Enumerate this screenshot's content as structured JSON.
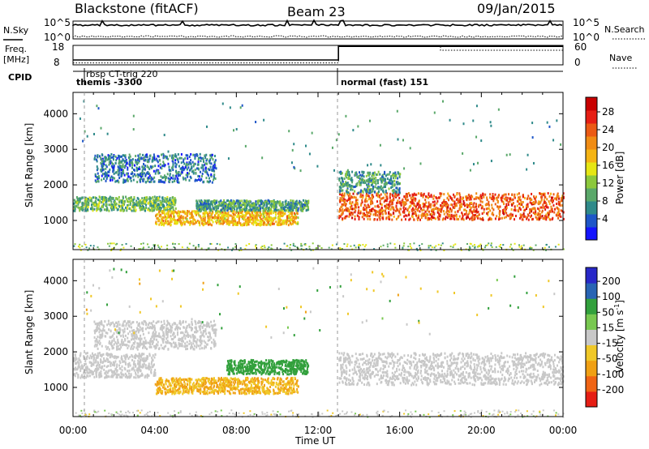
{
  "header": {
    "station": "Blackstone (fitACF)",
    "beam": "Beam 23",
    "date": "09/Jan/2015"
  },
  "left_labels": {
    "nsky": "N.Sky",
    "freq": "Freq.",
    "freq_unit": "[MHz]",
    "cpid": "CPID"
  },
  "right_labels": {
    "nsearch": "N.Search",
    "nave": "Nave"
  },
  "noise_ticks": {
    "left_top": "10^5",
    "left_bot": "10^0",
    "right_top": "10^5",
    "right_bot": "10^0"
  },
  "freq_ticks": {
    "left_top": "18",
    "left_bot": "8",
    "right_top": "60",
    "right_bot": "0"
  },
  "cpid_labels": [
    {
      "text": "rbsp CT-trig 220"
    },
    {
      "text": "themis -3300"
    },
    {
      "text": "normal (fast) 151"
    }
  ],
  "axis": {
    "ylabel": "Slant Range [km]",
    "xlabel": "Time UT",
    "y_ticks": [
      "1000",
      "2000",
      "3000",
      "4000"
    ],
    "x_ticks": [
      "00:00",
      "04:00",
      "08:00",
      "12:00",
      "16:00",
      "20:00",
      "00:00"
    ]
  },
  "power_colorbar": {
    "label": "Power [dB]",
    "ticks": [
      "4",
      "8",
      "12",
      "16",
      "20",
      "24",
      "28"
    ],
    "colors": [
      "#1414ff",
      "#1e56c8",
      "#2f8a8a",
      "#5aa86a",
      "#8cc83c",
      "#e6e614",
      "#f5b414",
      "#f08c14",
      "#eb5a14",
      "#e61e14",
      "#c80000"
    ]
  },
  "velocity_colorbar": {
    "label": "Velocity [m s",
    "label_sup": "-1",
    "label_end": "]",
    "ticks": [
      "200",
      "100",
      "50",
      "15",
      "-15",
      "-50",
      "-100",
      "-200"
    ],
    "colors": [
      "#2828c8",
      "#2864b4",
      "#32a03c",
      "#78c850",
      "#c8c8c8",
      "#f0c828",
      "#f0a014",
      "#f06414",
      "#e61e14"
    ]
  },
  "chart_data": {
    "type": "heatmap",
    "title": "Blackstone (fitACF)",
    "xlabel": "Time UT",
    "ylabel": "Slant Range [km]",
    "xlim": [
      "00:00",
      "24:00"
    ],
    "ylim": [
      180,
      4600
    ],
    "grid": false,
    "mode_changes_ut": [
      0.5,
      13.0
    ],
    "frequency_mhz": [
      {
        "start": 0.0,
        "end": 13.0,
        "value": 10.5
      },
      {
        "start": 13.0,
        "end": 24.0,
        "value": 17.5
      }
    ],
    "nave": [
      {
        "start": 0.0,
        "end": 13.0,
        "value": 6
      },
      {
        "start": 13.0,
        "end": 18.0,
        "value": 60
      },
      {
        "start": 18.0,
        "end": 24.0,
        "value": 45
      }
    ],
    "power_bands": [
      {
        "t_start": 0.0,
        "t_end": 5.0,
        "r_low": 1300,
        "r_high": 1700,
        "power_db": 10
      },
      {
        "t_start": 4.0,
        "t_end": 11.0,
        "r_low": 900,
        "r_high": 1300,
        "power_db": 18
      },
      {
        "t_start": 6.0,
        "t_end": 11.5,
        "r_low": 1300,
        "r_high": 1600,
        "power_db": 8
      },
      {
        "t_start": 1.0,
        "t_end": 7.0,
        "r_low": 2100,
        "r_high": 2900,
        "power_db": 5
      },
      {
        "t_start": 13.0,
        "t_end": 24.0,
        "r_low": 1050,
        "r_high": 1800,
        "power_db": 24
      },
      {
        "t_start": 13.0,
        "t_end": 16.0,
        "r_low": 1800,
        "r_high": 2400,
        "power_db": 8
      }
    ],
    "velocity_bands": [
      {
        "t_start": 0.0,
        "t_end": 4.0,
        "r_low": 1300,
        "r_high": 2000,
        "velocity": 0
      },
      {
        "t_start": 4.0,
        "t_end": 11.0,
        "r_low": 850,
        "r_high": 1300,
        "velocity": -50
      },
      {
        "t_start": 7.5,
        "t_end": 11.5,
        "r_low": 1400,
        "r_high": 1800,
        "velocity": 50
      },
      {
        "t_start": 1.0,
        "t_end": 7.0,
        "r_low": 2100,
        "r_high": 2900,
        "velocity": 0
      },
      {
        "t_start": 13.0,
        "t_end": 24.0,
        "r_low": 1100,
        "r_high": 2000,
        "velocity": 0
      }
    ]
  }
}
